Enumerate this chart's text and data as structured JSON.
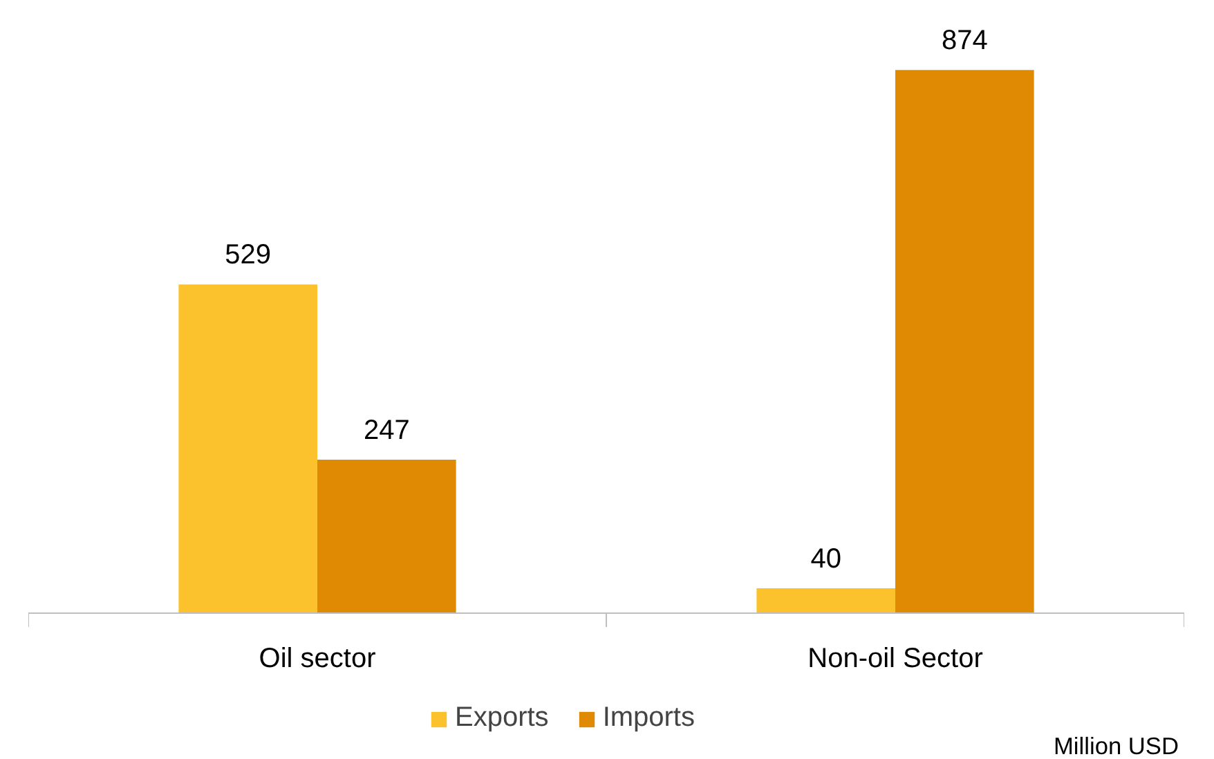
{
  "chart_data": {
    "type": "bar",
    "categories": [
      "Oil sector",
      "Non-oil Sector"
    ],
    "series": [
      {
        "name": "Exports",
        "color": "#fcc22e",
        "values": [
          529,
          40
        ]
      },
      {
        "name": "Imports",
        "color": "#e08a03",
        "values": [
          247,
          874
        ]
      }
    ],
    "data_labels": true,
    "legend": "bottom",
    "grid": false,
    "annotations": [
      "Million USD"
    ]
  }
}
